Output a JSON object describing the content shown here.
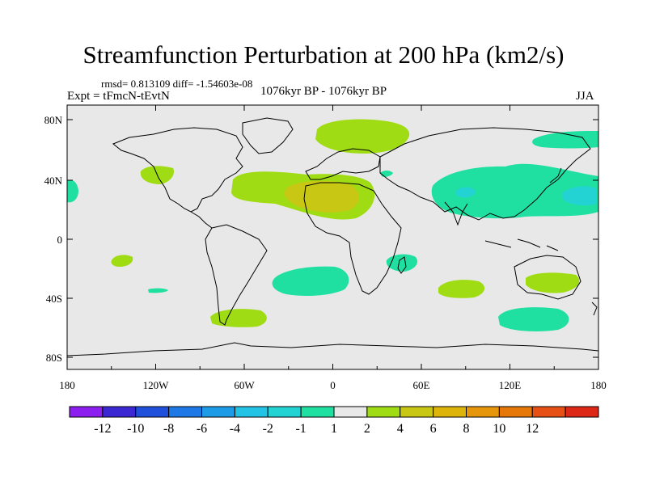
{
  "title": "Streamfunction Perturbation at 200 hPa (km2/s)",
  "stats": "rmsd= 0.813109 diff= -1.54603e-08",
  "experiment": "Expt = tFmcN-tEvtN",
  "period": "1076kyr BP - 1076kyr BP",
  "season": "JJA",
  "colors": {
    "background": "#e8e8e8",
    "coast": "#000000",
    "lev_neg1": "#1fe0a0",
    "lev_neg2": "#23d2d2",
    "lev_pos1": "#a0dc14",
    "lev_pos2": "#c8c814"
  },
  "axes": {
    "lat_ticks": [
      "80N",
      "40N",
      "0",
      "40S",
      "80S"
    ],
    "lon_ticks": [
      "180",
      "120W",
      "60W",
      "0",
      "60E",
      "120E",
      "180"
    ]
  },
  "colorbar": {
    "labels": [
      "-12",
      "-10",
      "-8",
      "-6",
      "-4",
      "-2",
      "-1",
      "1",
      "2",
      "4",
      "6",
      "8",
      "10",
      "12"
    ],
    "colors": [
      "#8c1ef0",
      "#3c28d2",
      "#1e50dc",
      "#1e78e6",
      "#1e9be6",
      "#23c3e6",
      "#23d2d2",
      "#1fe0a0",
      "#e8e8e8",
      "#a0dc14",
      "#c8c814",
      "#dcb40a",
      "#e6960a",
      "#e6780a",
      "#e65014",
      "#dc2814"
    ]
  }
}
